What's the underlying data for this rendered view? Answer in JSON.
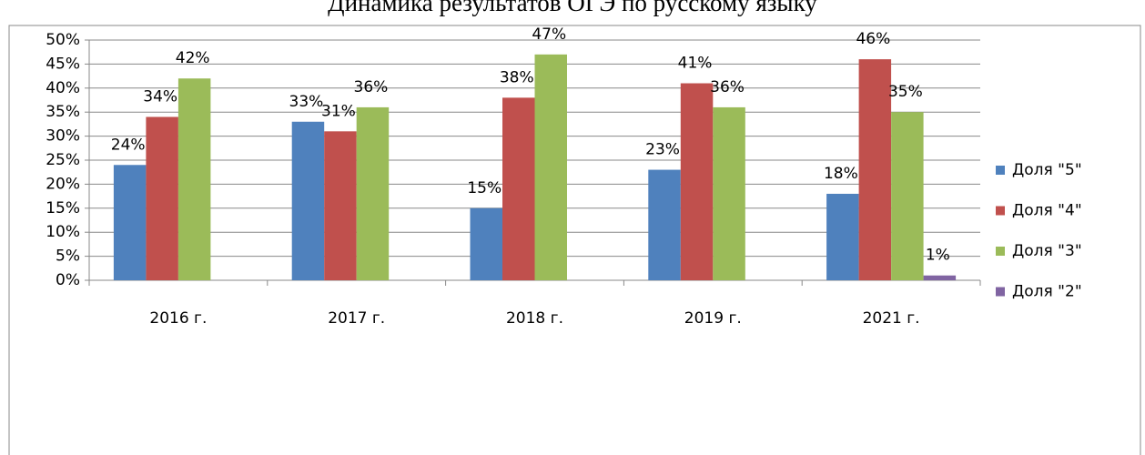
{
  "chart_data": {
    "type": "bar",
    "title": "Динамика результатов ОГЭ по русскому языку",
    "categories": [
      "2016 г.",
      "2017 г.",
      "2018 г.",
      "2019 г.",
      "2021 г."
    ],
    "series": [
      {
        "name": "Доля \"5\"",
        "color": "#4f81bd",
        "values": [
          24,
          33,
          15,
          23,
          18
        ],
        "value_labels": [
          "24%",
          "33%",
          "15%",
          "23%",
          "18%"
        ]
      },
      {
        "name": "Доля \"4\"",
        "color": "#c0504d",
        "values": [
          34,
          31,
          38,
          41,
          46
        ],
        "value_labels": [
          "34%",
          "31%",
          "38%",
          "41%",
          "46%"
        ]
      },
      {
        "name": "Доля \"3\"",
        "color": "#9bbb59",
        "values": [
          42,
          36,
          47,
          36,
          35
        ],
        "value_labels": [
          "42%",
          "36%",
          "47%",
          "36%",
          "35%"
        ]
      },
      {
        "name": "Доля \"2\"",
        "color": "#8064a2",
        "values": [
          null,
          null,
          null,
          null,
          1
        ],
        "value_labels": [
          null,
          null,
          null,
          null,
          "1%"
        ]
      }
    ],
    "ylim": [
      0,
      50
    ],
    "yticks": [
      {
        "value": 0,
        "label": "0%"
      },
      {
        "value": 5,
        "label": "5%"
      },
      {
        "value": 10,
        "label": "10%"
      },
      {
        "value": 15,
        "label": "15%"
      },
      {
        "value": 20,
        "label": "20%"
      },
      {
        "value": 25,
        "label": "25%"
      },
      {
        "value": 30,
        "label": "30%"
      },
      {
        "value": 35,
        "label": "35%"
      },
      {
        "value": 40,
        "label": "40%"
      },
      {
        "value": 45,
        "label": "45%"
      },
      {
        "value": 50,
        "label": "50%"
      }
    ],
    "grid": true,
    "legend": "right"
  }
}
